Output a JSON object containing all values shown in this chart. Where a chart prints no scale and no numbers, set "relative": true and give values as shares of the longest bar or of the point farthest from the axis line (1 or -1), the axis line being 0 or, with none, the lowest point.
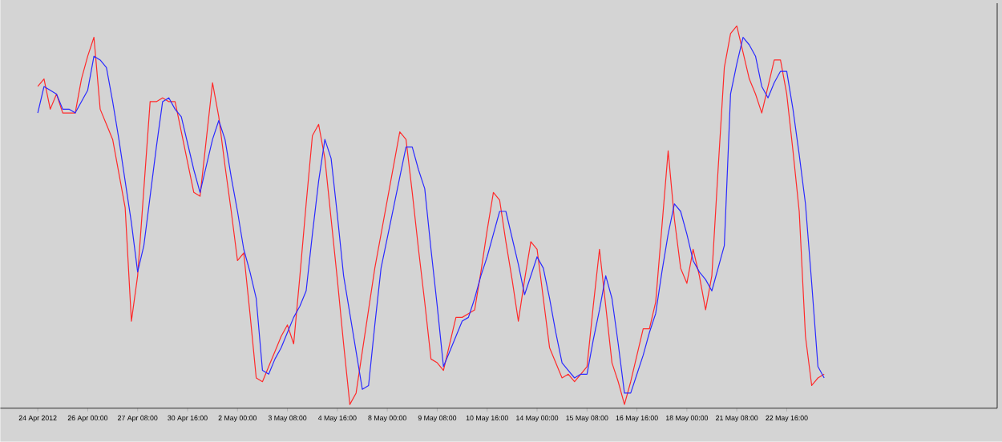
{
  "chart_data": {
    "type": "line",
    "relative": true,
    "categories": [
      "24 Apr 2012",
      null,
      null,
      null,
      null,
      null,
      null,
      null,
      "26 Apr 00:00",
      null,
      null,
      null,
      null,
      null,
      null,
      null,
      "27 Apr 08:00",
      null,
      null,
      null,
      null,
      null,
      null,
      null,
      "30 Apr 16:00",
      null,
      null,
      null,
      null,
      null,
      null,
      null,
      "2 May 00:00",
      null,
      null,
      null,
      null,
      null,
      null,
      null,
      "3 May 08:00",
      null,
      null,
      null,
      null,
      null,
      null,
      null,
      "4 May 16:00",
      null,
      null,
      null,
      null,
      null,
      null,
      null,
      "8 May 00:00",
      null,
      null,
      null,
      null,
      null,
      null,
      null,
      "9 May 08:00",
      null,
      null,
      null,
      null,
      null,
      null,
      null,
      "10 May 16:00",
      null,
      null,
      null,
      null,
      null,
      null,
      null,
      "14 May 00:00",
      null,
      null,
      null,
      null,
      null,
      null,
      null,
      "15 May 08:00",
      null,
      null,
      null,
      null,
      null,
      null,
      null,
      "16 May 16:00",
      null,
      null,
      null,
      null,
      null,
      null,
      null,
      "18 May 00:00",
      null,
      null,
      null,
      null,
      null,
      null,
      null,
      "21 May 08:00",
      null,
      null,
      null,
      null,
      null,
      null,
      null,
      "22 May 16:00",
      null,
      null,
      null,
      null,
      null,
      null
    ],
    "series": [
      {
        "color": "#ff2a2a",
        "values": [
          0.84,
          0.86,
          0.78,
          0.82,
          0.77,
          0.77,
          0.77,
          0.86,
          0.92,
          0.97,
          0.78,
          0.74,
          0.7,
          0.61,
          0.52,
          0.22,
          0.34,
          0.57,
          0.8,
          0.8,
          0.81,
          0.8,
          0.8,
          0.72,
          0.64,
          0.56,
          0.55,
          0.7,
          0.85,
          0.76,
          0.63,
          0.51,
          0.38,
          0.4,
          0.24,
          0.07,
          0.06,
          0.1,
          0.14,
          0.18,
          0.21,
          0.16,
          0.34,
          0.53,
          0.71,
          0.74,
          0.65,
          0.49,
          0.33,
          0.16,
          0,
          0.03,
          0.14,
          0.25,
          0.36,
          0.45,
          0.54,
          0.63,
          0.72,
          0.7,
          0.56,
          0.41,
          0.27,
          0.12,
          0.11,
          0.09,
          0.16,
          0.23,
          0.23,
          0.24,
          0.25,
          0.35,
          0.46,
          0.56,
          0.54,
          0.43,
          0.33,
          0.22,
          0.33,
          0.43,
          0.41,
          0.28,
          0.15,
          0.11,
          0.07,
          0.08,
          0.06,
          0.08,
          0.1,
          0.26,
          0.41,
          0.26,
          0.11,
          0.06,
          0,
          0.06,
          0.13,
          0.2,
          0.2,
          0.27,
          0.47,
          0.67,
          0.49,
          0.36,
          0.32,
          0.41,
          0.34,
          0.25,
          0.34,
          0.62,
          0.89,
          0.98,
          1,
          0.93,
          0.86,
          0.82,
          0.77,
          0.84,
          0.91,
          0.91,
          0.82,
          0.67,
          0.51,
          0.18,
          0.05,
          0.07,
          0.08
        ]
      },
      {
        "color": "#2a2aff",
        "values": [
          0.77,
          0.84,
          0.83,
          0.82,
          0.78,
          0.78,
          0.77,
          0.8,
          0.83,
          0.92,
          0.91,
          0.89,
          0.8,
          0.7,
          0.59,
          0.48,
          0.35,
          0.42,
          0.55,
          0.68,
          0.8,
          0.81,
          0.78,
          0.76,
          0.69,
          0.62,
          0.56,
          0.63,
          0.7,
          0.75,
          0.7,
          0.6,
          0.51,
          0.41,
          0.35,
          0.28,
          0.09,
          0.08,
          0.12,
          0.15,
          0.19,
          0.23,
          0.26,
          0.3,
          0.45,
          0.59,
          0.7,
          0.65,
          0.5,
          0.34,
          0.24,
          0.14,
          0.04,
          0.05,
          0.21,
          0.36,
          0.44,
          0.52,
          0.6,
          0.68,
          0.68,
          0.62,
          0.57,
          0.41,
          0.26,
          0.1,
          0.14,
          0.18,
          0.22,
          0.23,
          0.28,
          0.34,
          0.39,
          0.45,
          0.51,
          0.51,
          0.44,
          0.37,
          0.29,
          0.34,
          0.39,
          0.36,
          0.28,
          0.19,
          0.11,
          0.09,
          0.07,
          0.08,
          0.08,
          0.17,
          0.25,
          0.34,
          0.28,
          0.16,
          0.03,
          0.03,
          0.08,
          0.13,
          0.19,
          0.24,
          0.35,
          0.45,
          0.53,
          0.51,
          0.45,
          0.38,
          0.35,
          0.33,
          0.3,
          0.36,
          0.42,
          0.82,
          0.9,
          0.97,
          0.95,
          0.92,
          0.84,
          0.81,
          0.85,
          0.88,
          0.88,
          0.78,
          0.66,
          0.53,
          0.32,
          0.1,
          0.07
        ]
      }
    ]
  }
}
